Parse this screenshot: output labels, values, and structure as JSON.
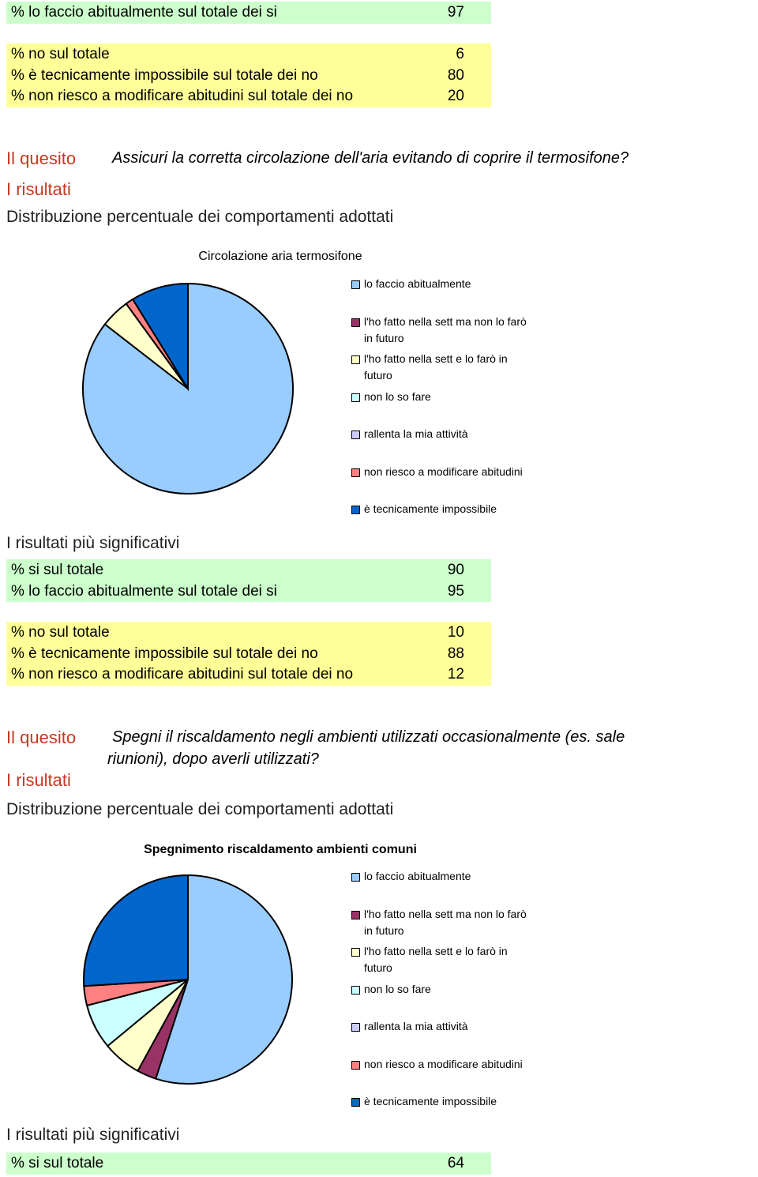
{
  "top_table": {
    "green_rows": [
      [
        "% lo faccio abitualmente sul totale dei si",
        97
      ]
    ],
    "yellow_rows": [
      [
        "% no sul totale",
        6
      ],
      [
        "% è tecnicamente impossibile sul totale dei no",
        80
      ],
      [
        "% non riesco a modificare abitudini sul totale dei no",
        20
      ]
    ]
  },
  "sections": [
    {
      "quesito_label": "Il quesito",
      "question": [
        "Assicuri la corretta circolazione dell'aria evitando di coprire il termosifone?"
      ],
      "risultati_label": "I risultati",
      "distribution_title": "Distribuzione percentuale dei comportamenti adottati",
      "chart": {
        "type": "pie",
        "title": "Circolazione aria termosifone",
        "title_bold": false,
        "categories": [
          "lo faccio abitualmente",
          "l'ho fatto nella sett ma non lo farò in futuro",
          "l'ho fatto nella sett e lo farò in futuro",
          "non lo so fare",
          "rallenta la mia attività",
          "non riesco a modificare abitudini",
          "è tecnicamente impossibile"
        ],
        "colors": [
          "#99ccff",
          "#993366",
          "#ffffcc",
          "#ccffff",
          "#ccccff",
          "#ff8080",
          "#0066cc"
        ],
        "values": [
          85.5,
          0,
          4.5,
          0,
          0,
          1.2,
          8.8
        ]
      },
      "significant_title": "I risultati più significativi",
      "green_rows": [
        [
          "% si sul totale",
          90
        ],
        [
          "% lo faccio abitualmente sul totale dei si",
          95
        ]
      ],
      "yellow_rows": [
        [
          "% no sul totale",
          10
        ],
        [
          "% è tecnicamente impossibile sul totale dei no",
          88
        ],
        [
          "% non riesco a modificare abitudini sul totale dei no",
          12
        ]
      ]
    },
    {
      "quesito_label": "Il quesito",
      "question": [
        "Spegni il riscaldamento negli ambienti utilizzati occasionalmente (es. sale",
        "riunioni), dopo averli utilizzati?"
      ],
      "risultati_label": "I risultati",
      "distribution_title": "Distribuzione percentuale dei comportamenti adottati",
      "chart": {
        "type": "pie",
        "title": "Spegnimento riscaldamento ambienti comuni",
        "title_bold": true,
        "categories": [
          "lo faccio abitualmente",
          "l'ho fatto nella sett ma non lo farò in futuro",
          "l'ho fatto nella sett e lo farò in futuro",
          "non lo so fare",
          "rallenta la mia attività",
          "non riesco a modificare abitudini",
          "è tecnicamente impossibile"
        ],
        "colors": [
          "#99ccff",
          "#993366",
          "#ffffcc",
          "#ccffff",
          "#ccccff",
          "#ff8080",
          "#0066cc"
        ],
        "values": [
          55,
          3,
          6,
          7,
          0,
          3,
          26
        ]
      },
      "significant_title": "I risultati più significativi",
      "green_rows": [
        [
          "% si sul totale",
          64
        ]
      ]
    }
  ]
}
